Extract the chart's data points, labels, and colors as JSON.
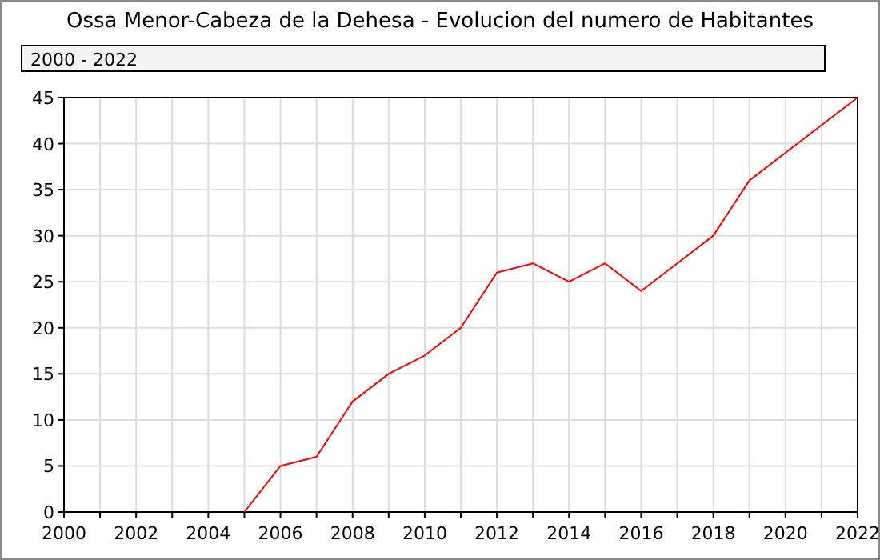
{
  "chart_data": {
    "type": "line",
    "title": "Ossa Menor-Cabeza de la Dehesa - Evolucion del numero de Habitantes",
    "subtitle": "2000 - 2022",
    "x": [
      2005,
      2006,
      2007,
      2008,
      2009,
      2010,
      2011,
      2012,
      2013,
      2014,
      2015,
      2016,
      2017,
      2018,
      2019,
      2020,
      2021,
      2022
    ],
    "series": [
      {
        "color": "#ff0000",
        "values": [
          0,
          5,
          6,
          12,
          15,
          17,
          20,
          26,
          27,
          25,
          27,
          24,
          27,
          30,
          36,
          39,
          42,
          45
        ]
      }
    ],
    "xlim": [
      2000,
      2022
    ],
    "xticks": [
      2000,
      {
        "value": 2001,
        "label": null
      },
      2002,
      {
        "value": 2003,
        "label": null
      },
      2004,
      {
        "value": 2005,
        "label": null
      },
      2006,
      {
        "value": 2007,
        "label": null
      },
      2008,
      {
        "value": 2009,
        "label": null
      },
      2010,
      {
        "value": 2011,
        "label": null
      },
      2012,
      {
        "value": 2013,
        "label": null
      },
      2014,
      {
        "value": 2015,
        "label": null
      },
      2016,
      {
        "value": 2017,
        "label": null
      },
      2018,
      {
        "value": 2019,
        "label": null
      },
      2020,
      {
        "value": 2021,
        "label": null
      },
      2022
    ],
    "ylim": [
      0,
      45
    ],
    "yticks": [
      0,
      5,
      10,
      15,
      20,
      25,
      30,
      35,
      40,
      45
    ],
    "grid": true,
    "line_style": "solid"
  }
}
